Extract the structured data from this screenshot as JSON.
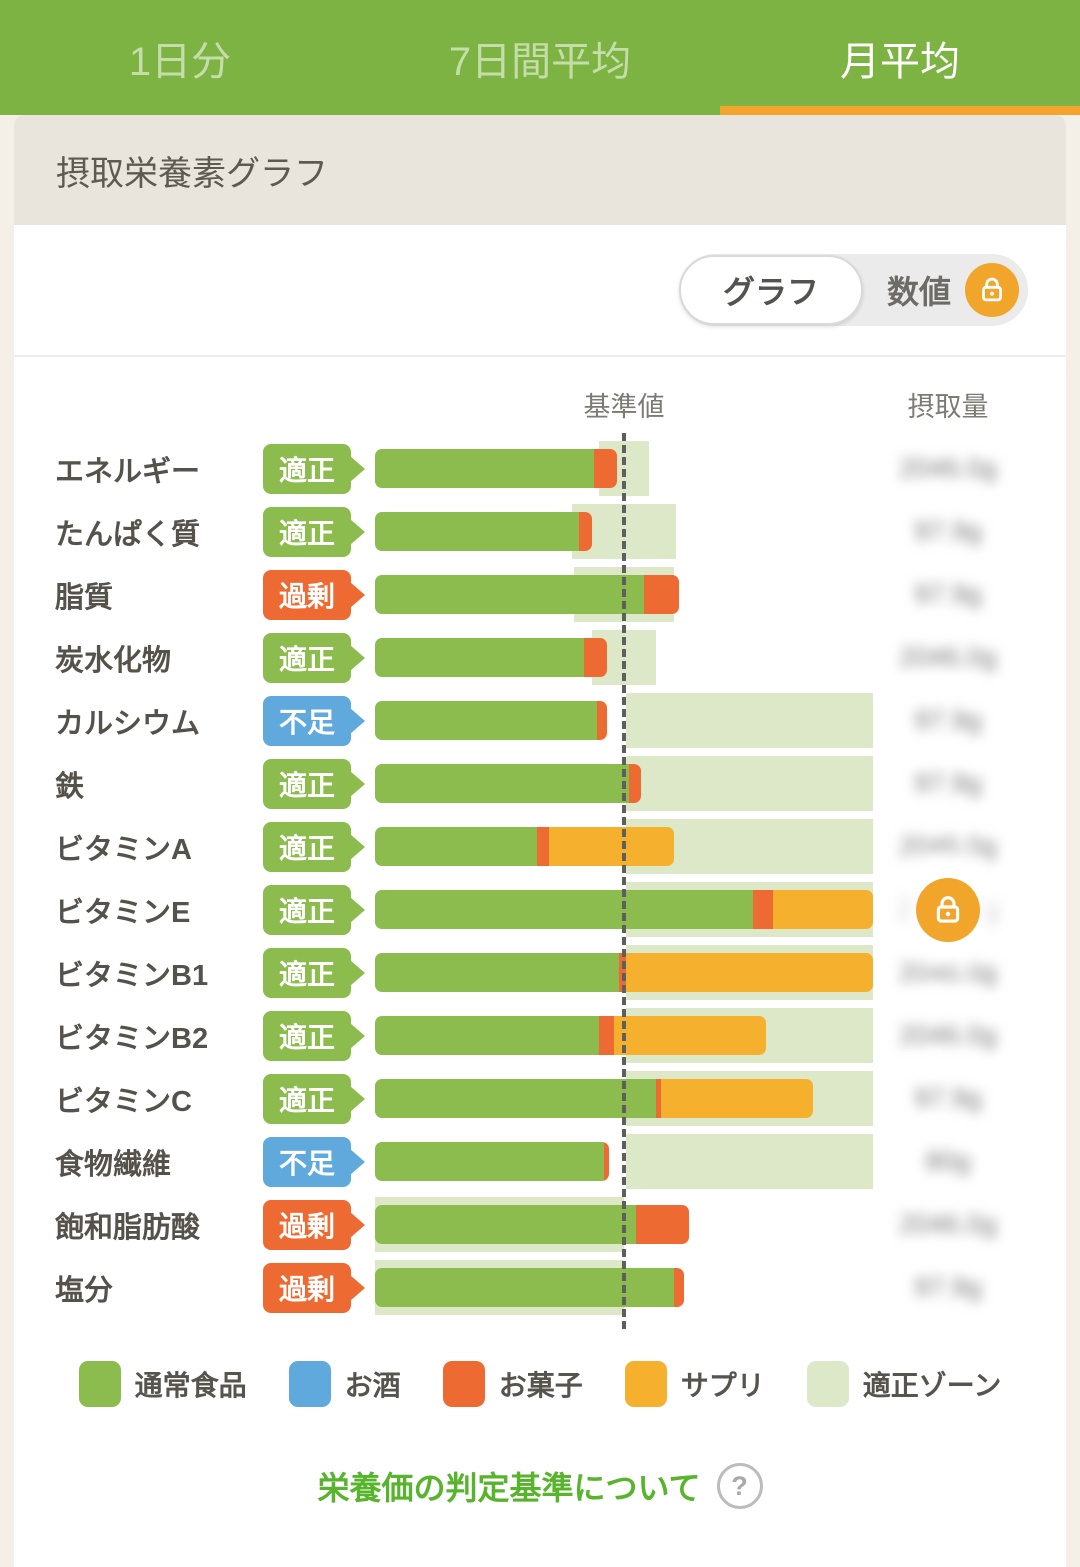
{
  "tabs": {
    "items": [
      {
        "key": "daily",
        "label": "1日分",
        "active": false
      },
      {
        "key": "7day-average",
        "label": "7日間平均",
        "active": false
      },
      {
        "key": "month-average",
        "label": "月平均",
        "active": true
      }
    ]
  },
  "panel": {
    "title": "摂取栄養素グラフ"
  },
  "toggle": {
    "graph_label": "グラフ",
    "numeric_label": "数値"
  },
  "chart_header": {
    "reference_label": "基準値",
    "intake_label": "摂取量"
  },
  "legend": {
    "items": [
      {
        "key": "food",
        "label": "通常食品",
        "color": "#8cbb4e"
      },
      {
        "key": "alcohol",
        "label": "お酒",
        "color": "#5fa9dd"
      },
      {
        "key": "snack",
        "label": "お菓子",
        "color": "#ee6a33"
      },
      {
        "key": "supplement",
        "label": "サプリ",
        "color": "#f5b02e"
      },
      {
        "key": "zone",
        "label": "適正ゾーン",
        "color": "#dce8c7"
      }
    ]
  },
  "footer": {
    "link_label": "栄養価の判定基準について",
    "help_icon": "?"
  },
  "colors": {
    "header_green": "#7cb342",
    "active_tab_underline": "#f3a42d",
    "status_ok": "#8cbb4e",
    "status_lack": "#5fa9dd",
    "status_excess": "#ee6a33",
    "bar_food": "#8cbb4e",
    "bar_alcohol": "#5fa9dd",
    "bar_snack": "#ee6a33",
    "bar_supplement": "#f5b02e",
    "zone": "#dce8c7",
    "lock_orange": "#f1a52b",
    "link_green": "#57b42c"
  },
  "chart_data": {
    "type": "bar",
    "orientation": "horizontal",
    "unit": "percent_of_reference_value",
    "reference_pct": 100,
    "axis_max_pct": 200,
    "reference_line": "dashed",
    "rows": [
      {
        "key": "energy",
        "label": "エネルギー",
        "status_label": "適正",
        "status_type": "ok",
        "zone_pct": [
          90,
          110
        ],
        "segments": [
          {
            "type": "food",
            "pct": 88
          },
          {
            "type": "snack",
            "pct": 9
          }
        ],
        "intake_value_blurred": "2046.0g",
        "locked": false
      },
      {
        "key": "protein",
        "label": "たんぱく質",
        "status_label": "適正",
        "status_type": "ok",
        "zone_pct": [
          79,
          121
        ],
        "segments": [
          {
            "type": "food",
            "pct": 82
          },
          {
            "type": "snack",
            "pct": 5
          }
        ],
        "intake_value_blurred": "97.9g",
        "locked": false
      },
      {
        "key": "fat",
        "label": "脂質",
        "status_label": "過剰",
        "status_type": "excess",
        "zone_pct": [
          80,
          120
        ],
        "segments": [
          {
            "type": "food",
            "pct": 108
          },
          {
            "type": "snack",
            "pct": 14
          }
        ],
        "intake_value_blurred": "97.9g",
        "locked": false
      },
      {
        "key": "carbohydrate",
        "label": "炭水化物",
        "status_label": "適正",
        "status_type": "ok",
        "zone_pct": [
          87,
          113
        ],
        "segments": [
          {
            "type": "food",
            "pct": 84
          },
          {
            "type": "snack",
            "pct": 9
          }
        ],
        "intake_value_blurred": "2046.0g",
        "locked": false
      },
      {
        "key": "calcium",
        "label": "カルシウム",
        "status_label": "不足",
        "status_type": "lack",
        "zone_pct": [
          101,
          200
        ],
        "segments": [
          {
            "type": "food",
            "pct": 89
          },
          {
            "type": "snack",
            "pct": 4
          }
        ],
        "intake_value_blurred": "97.9g",
        "locked": false
      },
      {
        "key": "iron",
        "label": "鉄",
        "status_label": "適正",
        "status_type": "ok",
        "zone_pct": [
          101,
          200
        ],
        "segments": [
          {
            "type": "food",
            "pct": 102
          },
          {
            "type": "snack",
            "pct": 5
          }
        ],
        "intake_value_blurred": "97.9g",
        "locked": false
      },
      {
        "key": "vitamin-a",
        "label": "ビタミンA",
        "status_label": "適正",
        "status_type": "ok",
        "zone_pct": [
          101,
          200
        ],
        "segments": [
          {
            "type": "food",
            "pct": 65
          },
          {
            "type": "snack",
            "pct": 5
          },
          {
            "type": "supplement",
            "pct": 50
          }
        ],
        "intake_value_blurred": "2046.0g",
        "locked": false
      },
      {
        "key": "vitamin-e",
        "label": "ビタミンE",
        "status_label": "適正",
        "status_type": "ok",
        "zone_pct": [
          101,
          200
        ],
        "segments": [
          {
            "type": "food",
            "pct": 152
          },
          {
            "type": "snack",
            "pct": 8
          },
          {
            "type": "supplement",
            "pct": 40
          }
        ],
        "intake_value_blurred": "2046.0g",
        "locked": true
      },
      {
        "key": "vitamin-b1",
        "label": "ビタミンB1",
        "status_label": "適正",
        "status_type": "ok",
        "zone_pct": [
          101,
          200
        ],
        "segments": [
          {
            "type": "food",
            "pct": 98
          },
          {
            "type": "snack",
            "pct": 3
          },
          {
            "type": "supplement",
            "pct": 99
          }
        ],
        "intake_value_blurred": "2046.0g",
        "locked": false
      },
      {
        "key": "vitamin-b2",
        "label": "ビタミンB2",
        "status_label": "適正",
        "status_type": "ok",
        "zone_pct": [
          101,
          200
        ],
        "segments": [
          {
            "type": "food",
            "pct": 90
          },
          {
            "type": "snack",
            "pct": 6
          },
          {
            "type": "supplement",
            "pct": 61
          }
        ],
        "intake_value_blurred": "2046.0g",
        "locked": false
      },
      {
        "key": "vitamin-c",
        "label": "ビタミンC",
        "status_label": "適正",
        "status_type": "ok",
        "zone_pct": [
          101,
          200
        ],
        "segments": [
          {
            "type": "food",
            "pct": 113
          },
          {
            "type": "snack",
            "pct": 2
          },
          {
            "type": "supplement",
            "pct": 61
          }
        ],
        "intake_value_blurred": "97.9g",
        "locked": false
      },
      {
        "key": "fiber",
        "label": "食物繊維",
        "status_label": "不足",
        "status_type": "lack",
        "zone_pct": [
          101,
          200
        ],
        "segments": [
          {
            "type": "food",
            "pct": 92
          },
          {
            "type": "snack",
            "pct": 2
          }
        ],
        "intake_value_blurred": "80g",
        "locked": false
      },
      {
        "key": "saturated-fat",
        "label": "飽和脂肪酸",
        "status_label": "過剰",
        "status_type": "excess",
        "zone_pct": [
          0,
          100
        ],
        "segments": [
          {
            "type": "food",
            "pct": 105
          },
          {
            "type": "snack",
            "pct": 21
          }
        ],
        "intake_value_blurred": "2046.0g",
        "locked": false
      },
      {
        "key": "salt",
        "label": "塩分",
        "status_label": "過剰",
        "status_type": "excess",
        "zone_pct": [
          0,
          100
        ],
        "segments": [
          {
            "type": "food",
            "pct": 120
          },
          {
            "type": "snack",
            "pct": 4
          }
        ],
        "intake_value_blurred": "97.9g",
        "locked": false
      }
    ]
  }
}
